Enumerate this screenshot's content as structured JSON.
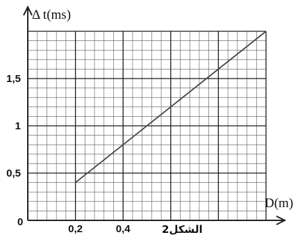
{
  "chart_data": {
    "type": "line",
    "title": "",
    "caption": "الشكل2",
    "xlabel": "D(m)",
    "ylabel": "Δ t(ms)",
    "origin_label": "0",
    "x_ticks": [
      "0,2",
      "0,4"
    ],
    "y_ticks": [
      "0,5",
      "1",
      "1,5"
    ],
    "xlim": [
      0,
      1.0
    ],
    "ylim": [
      0,
      2.0
    ],
    "grid": true,
    "legend": "none",
    "series": [
      {
        "x": [
          0.2,
          1.0
        ],
        "y": [
          0.4,
          2.0
        ]
      }
    ],
    "colors": {
      "grid_major": "#1a1a1a",
      "grid_minor": "#555555",
      "line": "#444444",
      "axis": "#222222"
    }
  }
}
